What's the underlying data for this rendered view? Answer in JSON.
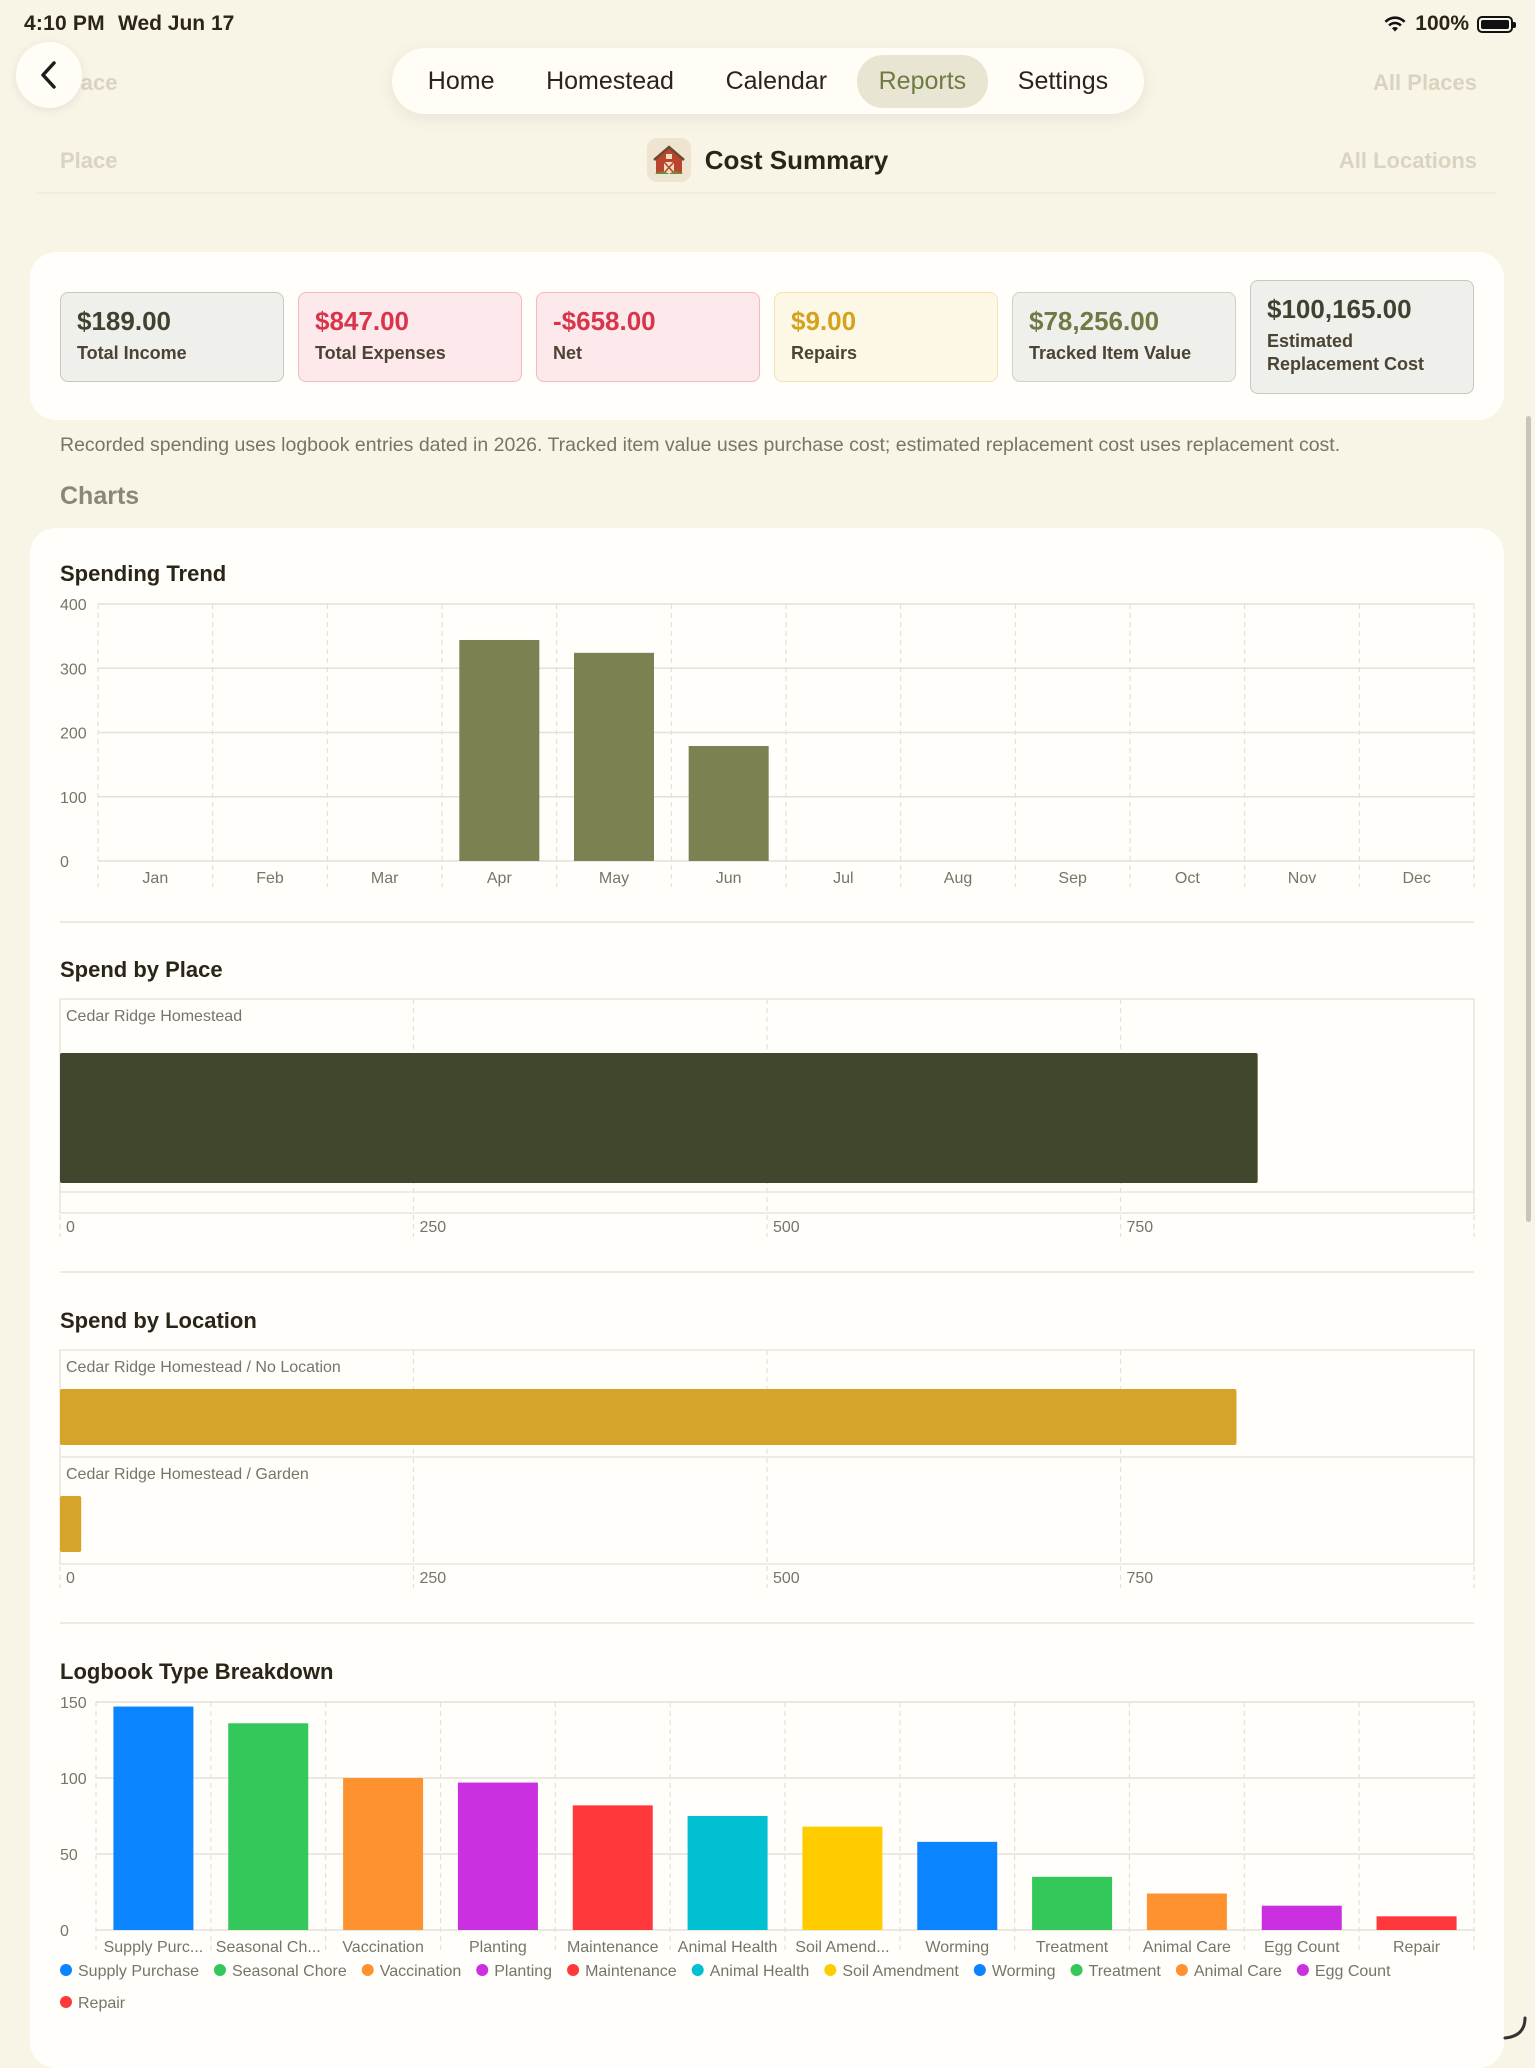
{
  "status_bar": {
    "time": "4:10 PM",
    "date": "Wed Jun 17",
    "battery": "100%"
  },
  "background_rows": [
    {
      "label": "Place",
      "value": "All Places"
    },
    {
      "label": "Place",
      "value": "All Locations"
    }
  ],
  "nav": {
    "tabs": [
      {
        "label": "Home",
        "active": false
      },
      {
        "label": "Homestead",
        "active": false
      },
      {
        "label": "Calendar",
        "active": false
      },
      {
        "label": "Reports",
        "active": true
      },
      {
        "label": "Settings",
        "active": false
      }
    ]
  },
  "page": {
    "title": "Cost Summary"
  },
  "stats": [
    {
      "value": "$189.00",
      "label": "Total Income",
      "color": "#3e4330",
      "bg": "#efefeb",
      "border": "#c8c8c2"
    },
    {
      "value": "$847.00",
      "label": "Total Expenses",
      "color": "#d8344a",
      "bg": "#fde8ec",
      "border": "#f2b9c3"
    },
    {
      "value": "-$658.00",
      "label": "Net",
      "color": "#d8344a",
      "bg": "#fde8ec",
      "border": "#f2b9c3"
    },
    {
      "value": "$9.00",
      "label": "Repairs",
      "color": "#d4a21e",
      "bg": "#fdf7e6",
      "border": "#f3e2b4"
    },
    {
      "value": "$78,256.00",
      "label": "Tracked Item Value",
      "color": "#6f7a44",
      "bg": "#efefeb",
      "border": "#cfd0c8"
    },
    {
      "value": "$100,165.00",
      "label": "Estimated Replacement Cost",
      "color": "#3e4330",
      "bg": "#efefeb",
      "border": "#c8c8c2"
    }
  ],
  "note": "Recorded spending uses logbook entries dated in 2026. Tracked item value uses purchase cost; estimated replacement cost uses replacement cost.",
  "charts_heading": "Charts",
  "chart_data": [
    {
      "type": "bar",
      "title": "Spending Trend",
      "categories": [
        "Jan",
        "Feb",
        "Mar",
        "Apr",
        "May",
        "Jun",
        "Jul",
        "Aug",
        "Sep",
        "Oct",
        "Nov",
        "Dec"
      ],
      "values": [
        0,
        0,
        0,
        344,
        324,
        179,
        0,
        0,
        0,
        0,
        0,
        0
      ],
      "ylim": [
        0,
        400
      ],
      "yticks": [
        0,
        100,
        200,
        300,
        400
      ],
      "color": "#7b8150",
      "grid": true
    },
    {
      "type": "bar",
      "orientation": "horizontal",
      "title": "Spend by Place",
      "categories": [
        "Cedar Ridge Homestead"
      ],
      "values": [
        847
      ],
      "xlim": [
        0,
        1000
      ],
      "xticks": [
        0,
        250,
        500,
        750
      ],
      "color": "#40472c",
      "grid": true
    },
    {
      "type": "bar",
      "orientation": "horizontal",
      "title": "Spend by Location",
      "categories": [
        "Cedar Ridge Homestead / No Location",
        "Cedar Ridge Homestead / Garden"
      ],
      "values": [
        832,
        15
      ],
      "xlim": [
        0,
        1000
      ],
      "xticks": [
        0,
        250,
        500,
        750
      ],
      "color": "#d6a32b",
      "grid": true
    },
    {
      "type": "bar",
      "title": "Logbook Type Breakdown",
      "categories": [
        "Supply Purchase",
        "Seasonal Chore",
        "Vaccination",
        "Planting",
        "Maintenance",
        "Animal Health",
        "Soil Amendment",
        "Worming",
        "Treatment",
        "Animal Care",
        "Egg Count",
        "Repair"
      ],
      "tick_labels": [
        "Supply Purc...",
        "Seasonal Ch...",
        "Vaccination",
        "Planting",
        "Maintenance",
        "Animal Health",
        "Soil Amend...",
        "Worming",
        "Treatment",
        "Animal Care",
        "Egg Count",
        "Repair"
      ],
      "values": [
        147,
        136,
        100,
        97,
        82,
        75,
        68,
        58,
        35,
        24,
        16,
        9
      ],
      "colors": [
        "#0a84ff",
        "#34c759",
        "#ff9230",
        "#cb30e0",
        "#ff383c",
        "#00c0d1",
        "#ffcc00",
        "#0a84ff",
        "#34c759",
        "#ff9230",
        "#cb30e0",
        "#ff383c"
      ],
      "ylim": [
        0,
        150
      ],
      "yticks": [
        0,
        50,
        100,
        150
      ],
      "legend": "bottom",
      "grid": true
    }
  ]
}
